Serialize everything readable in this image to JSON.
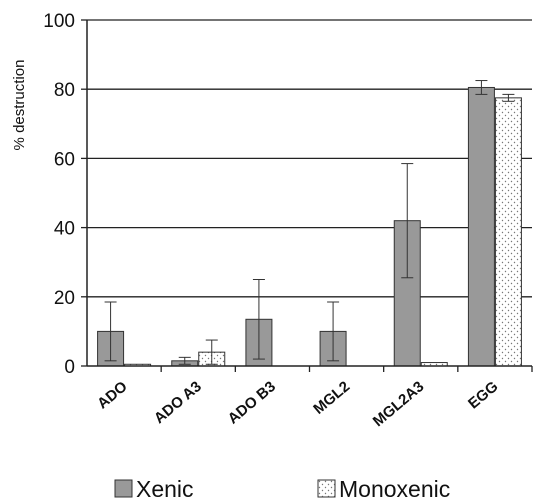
{
  "chart_data": {
    "type": "bar",
    "ylabel": "% destruction",
    "xlabel": "",
    "ylim": [
      0,
      100
    ],
    "yticks": [
      0,
      20,
      40,
      60,
      80,
      100
    ],
    "grid": true,
    "legend_position": "bottom",
    "categories": [
      "ADO",
      "ADO A3",
      "ADO B3",
      "MGL2",
      "MGL2A3",
      "EGG"
    ],
    "series": [
      {
        "name": "Xenic",
        "color": "#999999",
        "pattern": "solid",
        "values": [
          10,
          1.5,
          13.5,
          10,
          42,
          80.5
        ],
        "error": [
          8.5,
          1,
          11.5,
          8.5,
          16.5,
          2
        ]
      },
      {
        "name": "Monoxenic",
        "color": "#ffffff",
        "pattern": "dotted",
        "values": [
          0.5,
          4,
          null,
          null,
          1,
          77.5
        ],
        "error": [
          0,
          3.5,
          null,
          null,
          0,
          1
        ]
      }
    ]
  }
}
